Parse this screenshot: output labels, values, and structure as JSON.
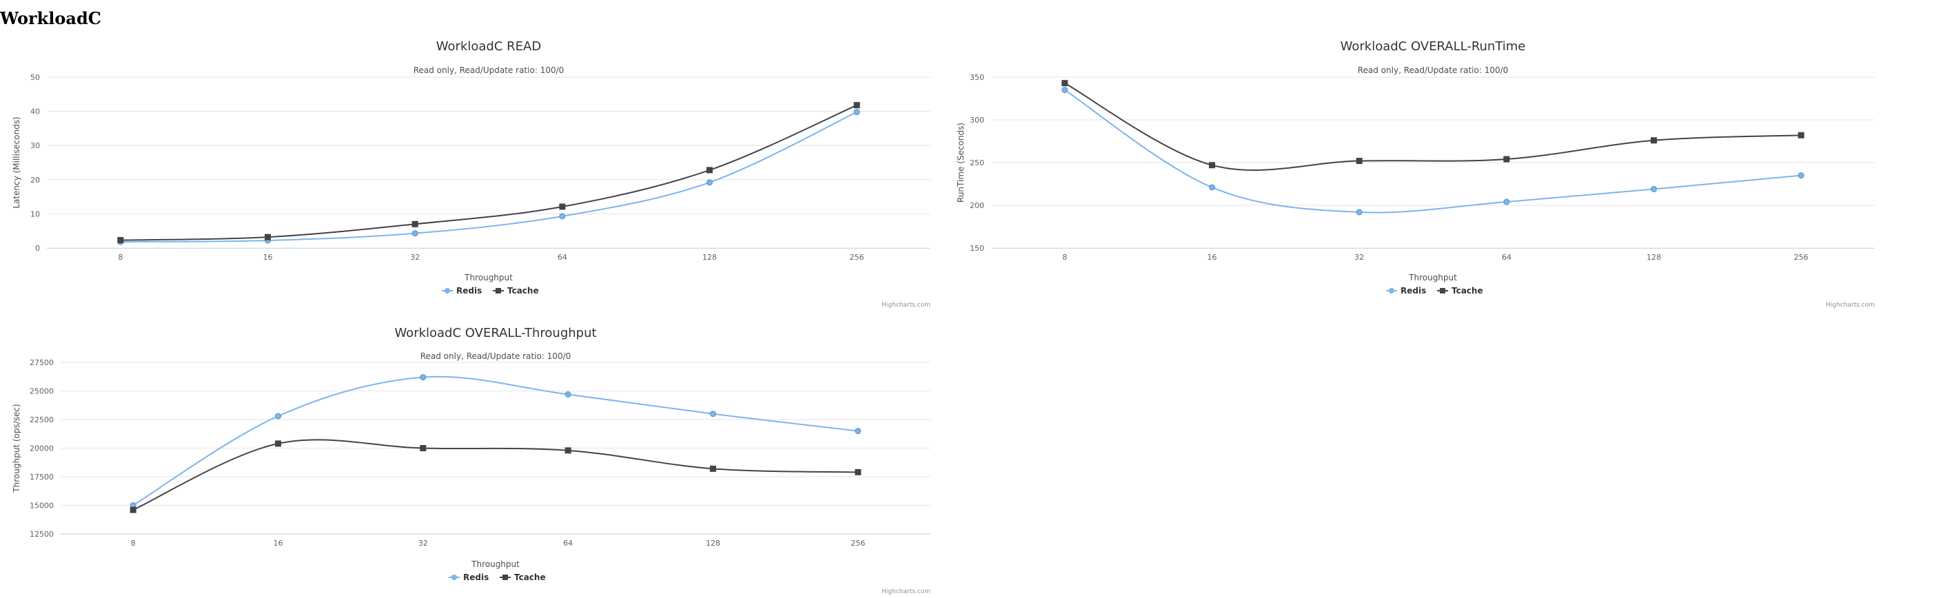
{
  "page": {
    "title": "WorkloadC"
  },
  "chart_data": [
    {
      "type": "line",
      "title": "WorkloadC READ",
      "subtitle": "Read only, Read/Update ratio: 100/0",
      "xlabel": "Throughput",
      "ylabel": "Latency (Milliseconds)",
      "categories": [
        "8",
        "16",
        "32",
        "64",
        "128",
        "256"
      ],
      "ylim": [
        0,
        50
      ],
      "yticks": [
        0,
        10,
        20,
        30,
        40,
        50
      ],
      "series": [
        {
          "name": "Redis",
          "color": "#7cb5ec",
          "marker": "circle",
          "values": [
            1.8,
            2.2,
            4.3,
            9.3,
            19.2,
            39.8
          ]
        },
        {
          "name": "Tcache",
          "color": "#434348",
          "marker": "square",
          "values": [
            2.3,
            3.2,
            7.0,
            12.1,
            22.8,
            41.8
          ]
        }
      ],
      "legend": "bottom-center",
      "credits": "Highcharts.com",
      "grid": true
    },
    {
      "type": "line",
      "title": "WorkloadC OVERALL-RunTime",
      "subtitle": "Read only, Read/Update ratio: 100/0",
      "xlabel": "Throughput",
      "ylabel": "RunTime (Seconds)",
      "categories": [
        "8",
        "16",
        "32",
        "64",
        "128",
        "256"
      ],
      "ylim": [
        150,
        350
      ],
      "yticks": [
        150,
        200,
        250,
        300,
        350
      ],
      "series": [
        {
          "name": "Redis",
          "color": "#7cb5ec",
          "marker": "circle",
          "values": [
            335,
            221,
            192,
            204,
            219,
            235
          ]
        },
        {
          "name": "Tcache",
          "color": "#434348",
          "marker": "square",
          "values": [
            343,
            247,
            252,
            254,
            276,
            282
          ]
        }
      ],
      "legend": "bottom-center",
      "credits": "Highcharts.com",
      "grid": true
    },
    {
      "type": "line",
      "title": "WorkloadC OVERALL-Throughput",
      "subtitle": "Read only, Read/Update ratio: 100/0",
      "xlabel": "Throughput",
      "ylabel": "Throughput (ops/sec)",
      "categories": [
        "8",
        "16",
        "32",
        "64",
        "128",
        "256"
      ],
      "ylim": [
        12500,
        27500
      ],
      "yticks": [
        12500,
        15000,
        17500,
        20000,
        22500,
        25000,
        27500
      ],
      "series": [
        {
          "name": "Redis",
          "color": "#7cb5ec",
          "marker": "circle",
          "values": [
            15000,
            22800,
            26200,
            24700,
            23000,
            21500
          ]
        },
        {
          "name": "Tcache",
          "color": "#434348",
          "marker": "square",
          "values": [
            14600,
            20400,
            20000,
            19800,
            18200,
            17900
          ]
        }
      ],
      "legend": "bottom-center",
      "credits": "Highcharts.com",
      "grid": true
    }
  ]
}
